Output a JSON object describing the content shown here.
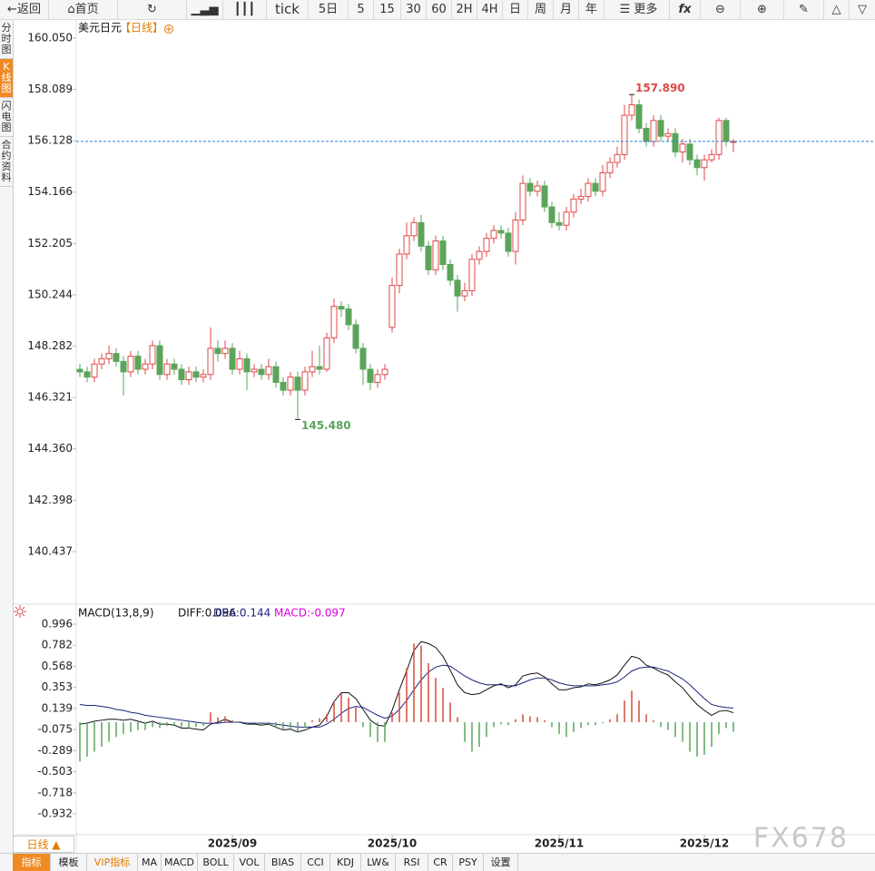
{
  "toolbar": {
    "back": "返回",
    "home": "首页",
    "items": [
      "tick",
      "5日",
      "5",
      "15",
      "30",
      "60",
      "2H",
      "4H",
      "日",
      "周",
      "月",
      "年"
    ],
    "more": "更多"
  },
  "sidebar": {
    "tabs": [
      "分时图",
      "K线图",
      "闪电图",
      "合约资料"
    ],
    "active": 1
  },
  "period_tab": "日线 ▲",
  "bottom_bar": {
    "items": [
      "指标",
      "模板",
      "VIP指标",
      "MA",
      "MACD",
      "BOLL",
      "VOL",
      "BIAS",
      "CCI",
      "KDJ",
      "LW&",
      "RSI",
      "CR",
      "PSY",
      "设置"
    ],
    "active": 0,
    "highlight": 2
  },
  "watermark": "FX678",
  "chart_data": [
    {
      "type": "candlestick",
      "title": "美元日元",
      "subtitle": "【日线】",
      "up_color": "#e04848",
      "down_color": "#5aa55a",
      "last_line_color": "#2f7fd0",
      "categories": [
        null,
        null,
        null,
        null,
        null,
        null,
        null,
        null,
        null,
        null,
        null,
        null,
        null,
        null,
        null,
        null,
        null,
        null,
        null,
        null,
        null,
        "2025/09",
        null,
        null,
        null,
        null,
        null,
        null,
        null,
        null,
        null,
        null,
        null,
        null,
        null,
        null,
        null,
        null,
        null,
        null,
        null,
        null,
        null,
        "2025/10",
        null,
        null,
        null,
        null,
        null,
        null,
        null,
        null,
        null,
        null,
        null,
        null,
        null,
        null,
        null,
        null,
        null,
        null,
        null,
        null,
        null,
        null,
        "2025/11",
        null,
        null,
        null,
        null,
        null,
        null,
        null,
        null,
        null,
        null,
        null,
        null,
        null,
        null,
        null,
        null,
        null,
        null,
        null,
        "2025/12",
        null,
        null,
        null,
        null
      ],
      "open": [
        147.4,
        147.3,
        147.1,
        147.6,
        147.8,
        148.0,
        147.7,
        147.3,
        147.9,
        147.4,
        147.6,
        148.3,
        147.2,
        147.6,
        147.4,
        147.0,
        147.3,
        147.1,
        147.2,
        148.2,
        148.0,
        148.2,
        147.4,
        147.8,
        147.3,
        147.4,
        147.2,
        147.5,
        146.9,
        146.6,
        147.1,
        146.6,
        147.3,
        147.5,
        147.4,
        148.6,
        149.8,
        149.7,
        149.1,
        148.2,
        147.4,
        146.9,
        147.2,
        149.0,
        150.6,
        151.8,
        152.5,
        153.0,
        152.1,
        151.2,
        152.3,
        151.4,
        150.8,
        150.2,
        150.4,
        151.6,
        151.9,
        152.4,
        152.7,
        152.6,
        151.9,
        153.1,
        154.5,
        154.2,
        154.4,
        153.6,
        153.0,
        152.9,
        153.4,
        153.9,
        154.0,
        154.5,
        154.2,
        154.9,
        155.3,
        155.6,
        157.1,
        157.5,
        156.6,
        156.1,
        156.9,
        156.3,
        156.4,
        155.7,
        156.0,
        155.4,
        155.1,
        155.4,
        155.6,
        156.9,
        156.1
      ],
      "high": [
        147.6,
        147.5,
        147.8,
        148.0,
        148.3,
        148.2,
        147.9,
        148.1,
        148.1,
        147.8,
        148.5,
        148.5,
        147.8,
        147.8,
        147.6,
        147.5,
        147.5,
        147.4,
        149.0,
        148.5,
        148.5,
        148.4,
        148.1,
        148.0,
        147.6,
        147.6,
        147.8,
        147.7,
        147.1,
        147.3,
        147.3,
        147.5,
        148.1,
        148.3,
        148.8,
        150.1,
        150.0,
        149.9,
        149.3,
        148.4,
        147.6,
        147.4,
        147.6,
        150.9,
        152.0,
        153.0,
        153.2,
        153.3,
        152.3,
        152.5,
        152.5,
        151.6,
        151.0,
        150.7,
        151.8,
        152.1,
        152.6,
        152.9,
        152.9,
        152.8,
        153.4,
        154.8,
        154.7,
        154.6,
        154.6,
        153.8,
        153.4,
        153.6,
        154.1,
        154.3,
        154.7,
        154.7,
        155.2,
        155.5,
        155.9,
        157.5,
        157.89,
        157.7,
        156.8,
        157.1,
        157.1,
        156.6,
        156.6,
        156.2,
        156.2,
        155.6,
        155.6,
        155.8,
        157.0,
        157.0,
        156.2
      ],
      "low": [
        147.1,
        146.9,
        146.9,
        147.4,
        147.6,
        147.5,
        146.4,
        147.1,
        147.2,
        147.2,
        147.4,
        147.0,
        147.0,
        147.2,
        146.8,
        146.8,
        146.9,
        146.9,
        147.0,
        147.7,
        147.8,
        147.2,
        147.2,
        146.6,
        147.1,
        147.0,
        147.0,
        146.7,
        146.4,
        146.4,
        145.48,
        146.4,
        147.1,
        147.2,
        147.3,
        148.4,
        149.4,
        148.9,
        148.0,
        146.8,
        146.6,
        146.7,
        147.0,
        148.8,
        150.3,
        151.6,
        152.3,
        151.9,
        151.0,
        151.0,
        151.2,
        150.6,
        149.6,
        150.0,
        150.2,
        151.4,
        151.7,
        152.2,
        152.4,
        151.7,
        151.4,
        152.9,
        154.0,
        154.0,
        153.4,
        152.8,
        152.7,
        152.7,
        153.2,
        153.7,
        153.8,
        154.0,
        154.0,
        154.7,
        155.1,
        155.4,
        156.9,
        156.4,
        155.9,
        155.9,
        156.1,
        156.1,
        155.5,
        155.3,
        155.2,
        154.8,
        154.6,
        155.3,
        155.4,
        155.9,
        155.7
      ],
      "close": [
        147.3,
        147.1,
        147.6,
        147.8,
        148.0,
        147.7,
        147.3,
        147.9,
        147.4,
        147.6,
        148.3,
        147.2,
        147.6,
        147.4,
        147.0,
        147.3,
        147.1,
        147.2,
        148.2,
        148.0,
        148.2,
        147.4,
        147.8,
        147.3,
        147.4,
        147.2,
        147.5,
        146.9,
        146.6,
        147.1,
        146.6,
        147.3,
        147.5,
        147.4,
        148.6,
        149.8,
        149.7,
        149.1,
        148.2,
        147.4,
        146.9,
        147.2,
        147.4,
        150.6,
        151.8,
        152.5,
        153.0,
        152.1,
        151.2,
        152.3,
        151.4,
        150.8,
        150.2,
        150.4,
        151.6,
        151.9,
        152.4,
        152.7,
        152.6,
        151.9,
        153.1,
        154.5,
        154.2,
        154.4,
        153.6,
        153.0,
        152.9,
        153.4,
        153.9,
        154.0,
        154.5,
        154.2,
        154.9,
        155.3,
        155.6,
        157.1,
        157.5,
        156.6,
        156.1,
        156.9,
        156.3,
        156.4,
        155.7,
        156.0,
        155.4,
        155.1,
        155.4,
        155.6,
        156.9,
        156.1,
        156.1
      ],
      "annotations": [
        {
          "text": "157.890",
          "value": 157.89,
          "at": "high",
          "color": "#e04848"
        },
        {
          "text": "145.480",
          "value": 145.48,
          "at": "low",
          "color": "#5aa55a"
        }
      ],
      "ylim": [
        138.46,
        160.74
      ],
      "yticks": [
        {
          "value": 160.05,
          "label": "160.050"
        },
        158.089,
        156.128,
        154.166,
        152.205,
        150.244,
        148.282,
        146.321,
        {
          "value": 144.36,
          "label": "144.360"
        },
        142.398,
        140.437
      ]
    },
    {
      "type": "macd",
      "title": "MACD(13,8,9)",
      "up_color": "#d84a3a",
      "down_color": "#5aa55a",
      "series": [
        {
          "name": "DIFF:0.096",
          "color": "#111111",
          "style": "line",
          "values": [
            -0.02,
            -0.01,
            0.01,
            0.02,
            0.03,
            0.03,
            0.02,
            0.03,
            0.01,
            -0.01,
            0.01,
            -0.02,
            -0.02,
            -0.03,
            -0.06,
            -0.06,
            -0.07,
            -0.08,
            -0.02,
            0.0,
            0.03,
            0.0,
            0.0,
            -0.02,
            -0.02,
            -0.03,
            -0.02,
            -0.05,
            -0.08,
            -0.07,
            -0.1,
            -0.08,
            -0.05,
            -0.03,
            0.06,
            0.21,
            0.3,
            0.3,
            0.24,
            0.13,
            0.02,
            -0.03,
            -0.04,
            0.12,
            0.33,
            0.52,
            0.73,
            0.82,
            0.8,
            0.76,
            0.67,
            0.53,
            0.38,
            0.3,
            0.28,
            0.29,
            0.33,
            0.37,
            0.39,
            0.35,
            0.38,
            0.47,
            0.49,
            0.5,
            0.46,
            0.39,
            0.33,
            0.33,
            0.35,
            0.36,
            0.39,
            0.38,
            0.4,
            0.43,
            0.48,
            0.58,
            0.67,
            0.65,
            0.58,
            0.55,
            0.51,
            0.48,
            0.41,
            0.35,
            0.26,
            0.18,
            0.12,
            0.07,
            0.11,
            0.12,
            0.096
          ]
        },
        {
          "name": "DEA:0.144",
          "color": "#1a237e",
          "style": "line",
          "values": [
            0.18,
            0.17,
            0.17,
            0.16,
            0.15,
            0.13,
            0.12,
            0.1,
            0.09,
            0.07,
            0.06,
            0.05,
            0.04,
            0.03,
            0.02,
            0.01,
            0.0,
            -0.01,
            -0.01,
            -0.01,
            0.0,
            0.0,
            0.0,
            -0.01,
            -0.01,
            -0.01,
            -0.01,
            -0.02,
            -0.03,
            -0.04,
            -0.05,
            -0.05,
            -0.05,
            -0.05,
            -0.02,
            0.03,
            0.09,
            0.14,
            0.16,
            0.15,
            0.11,
            0.07,
            0.04,
            0.06,
            0.13,
            0.22,
            0.33,
            0.43,
            0.51,
            0.56,
            0.58,
            0.57,
            0.52,
            0.47,
            0.43,
            0.4,
            0.38,
            0.38,
            0.38,
            0.37,
            0.37,
            0.4,
            0.43,
            0.45,
            0.45,
            0.43,
            0.4,
            0.38,
            0.37,
            0.37,
            0.37,
            0.37,
            0.38,
            0.39,
            0.41,
            0.46,
            0.52,
            0.55,
            0.56,
            0.56,
            0.54,
            0.52,
            0.48,
            0.44,
            0.38,
            0.31,
            0.24,
            0.18,
            0.16,
            0.15,
            0.144
          ]
        },
        {
          "name": "MACD:-0.097",
          "color": "#e000e0",
          "style": "bar",
          "values": [
            -0.4,
            -0.35,
            -0.3,
            -0.25,
            -0.2,
            -0.15,
            -0.12,
            -0.1,
            -0.08,
            -0.08,
            -0.05,
            -0.06,
            -0.04,
            -0.03,
            -0.05,
            -0.06,
            -0.05,
            -0.04,
            0.1,
            0.05,
            0.06,
            0.02,
            0.01,
            -0.02,
            -0.01,
            -0.03,
            -0.02,
            -0.06,
            -0.08,
            -0.06,
            -0.1,
            -0.06,
            0.02,
            0.04,
            0.08,
            0.2,
            0.3,
            0.25,
            0.15,
            -0.05,
            -0.15,
            -0.2,
            -0.2,
            0.1,
            0.3,
            0.55,
            0.8,
            0.78,
            0.6,
            0.45,
            0.35,
            0.2,
            0.05,
            -0.2,
            -0.3,
            -0.25,
            -0.15,
            -0.05,
            -0.02,
            -0.03,
            0.03,
            0.08,
            0.06,
            0.05,
            0.02,
            -0.05,
            -0.12,
            -0.15,
            -0.1,
            -0.06,
            -0.03,
            -0.03,
            -0.01,
            0.03,
            0.08,
            0.22,
            0.32,
            0.22,
            0.08,
            0.02,
            -0.05,
            -0.08,
            -0.15,
            -0.2,
            -0.3,
            -0.35,
            -0.33,
            -0.25,
            -0.12,
            -0.06,
            -0.097
          ]
        }
      ],
      "ylim": [
        -1.098,
        1.07
      ],
      "yticks": [
        0.996,
        0.782,
        0.568,
        0.353,
        0.139,
        -0.075,
        -0.289,
        -0.503,
        -0.718,
        -0.932
      ]
    }
  ]
}
